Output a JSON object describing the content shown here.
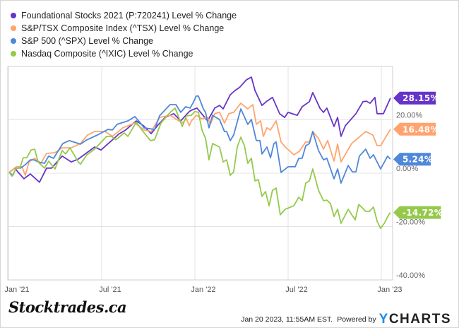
{
  "chart_data": {
    "type": "line",
    "x_unit": "months since Jan 2021",
    "ylim": [
      -40,
      40
    ],
    "yticks": [
      {
        "value": 20,
        "label": "20.00%"
      },
      {
        "value": 0,
        "label": "0.00%"
      },
      {
        "value": -20,
        "label": "-20.00%"
      },
      {
        "value": -40,
        "label": "-40.00%"
      }
    ],
    "xticks": [
      {
        "value": 0,
        "label": "Jan '21"
      },
      {
        "value": 6,
        "label": "Jul '21"
      },
      {
        "value": 12,
        "label": "Jan '22"
      },
      {
        "value": 18,
        "label": "Jul '22"
      },
      {
        "value": 24,
        "label": "Jan '23"
      }
    ],
    "grid": true,
    "legend_position": "top-left",
    "series": [
      {
        "name": "Foundational Stocks 2021 (P:720241) Level % Change",
        "color": "#6634c8",
        "end_label": "28.15%",
        "points": [
          [
            -0.09,
            0.3
          ],
          [
            0.27,
            1.9
          ],
          [
            0.5,
            0.3
          ],
          [
            0.86,
            -2.1
          ],
          [
            1.27,
            -0.3
          ],
          [
            1.86,
            -3.4
          ],
          [
            2.32,
            1.9
          ],
          [
            2.64,
            1.9
          ],
          [
            3.32,
            6.4
          ],
          [
            3.91,
            4.2
          ],
          [
            4.36,
            5.3
          ],
          [
            5.41,
            9.8
          ],
          [
            5.82,
            8.7
          ],
          [
            6.5,
            12.2
          ],
          [
            6.95,
            14.6
          ],
          [
            7.41,
            16.2
          ],
          [
            8.09,
            19.6
          ],
          [
            8.55,
            17.8
          ],
          [
            9.05,
            14.8
          ],
          [
            9.45,
            17.8
          ],
          [
            9.95,
            20.9
          ],
          [
            10.5,
            22.3
          ],
          [
            10.95,
            19.6
          ],
          [
            11.5,
            23.1
          ],
          [
            11.64,
            23.6
          ],
          [
            12.0,
            24.4
          ],
          [
            12.68,
            19.6
          ],
          [
            13.14,
            24.4
          ],
          [
            13.45,
            25.4
          ],
          [
            13.68,
            24.1
          ],
          [
            14.14,
            29.4
          ],
          [
            14.45,
            31.0
          ],
          [
            14.73,
            32.1
          ],
          [
            15.18,
            35.0
          ],
          [
            15.5,
            36.0
          ],
          [
            15.73,
            31.0
          ],
          [
            16.18,
            25.4
          ],
          [
            16.5,
            27.0
          ],
          [
            16.86,
            28.4
          ],
          [
            17.32,
            22.3
          ],
          [
            17.64,
            20.9
          ],
          [
            17.86,
            22.8
          ],
          [
            18.45,
            21.7
          ],
          [
            18.77,
            24.9
          ],
          [
            19.23,
            26.8
          ],
          [
            19.45,
            30.2
          ],
          [
            19.91,
            24.4
          ],
          [
            20.14,
            22.8
          ],
          [
            20.36,
            24.4
          ],
          [
            20.82,
            17.5
          ],
          [
            21.05,
            20.9
          ],
          [
            21.27,
            13.8
          ],
          [
            21.55,
            17.8
          ],
          [
            22.23,
            22.3
          ],
          [
            22.68,
            26.8
          ],
          [
            22.91,
            27.0
          ],
          [
            23.14,
            26.2
          ],
          [
            23.45,
            28.4
          ],
          [
            23.59,
            22.3
          ],
          [
            24.0,
            22.3
          ],
          [
            24.45,
            28.15
          ]
        ]
      },
      {
        "name": "S&P/TSX Composite Index (^TSX) Level % Change",
        "color": "#ffa46e",
        "end_label": "16.48%",
        "points": [
          [
            -0.09,
            0.3
          ],
          [
            0.36,
            2.4
          ],
          [
            0.73,
            2.4
          ],
          [
            0.95,
            -0.8
          ],
          [
            1.18,
            4.2
          ],
          [
            1.55,
            5.6
          ],
          [
            1.95,
            3.7
          ],
          [
            2.32,
            7.4
          ],
          [
            2.86,
            7.7
          ],
          [
            3.32,
            9.5
          ],
          [
            3.91,
            9.5
          ],
          [
            4.5,
            11.1
          ],
          [
            4.95,
            14.3
          ],
          [
            5.41,
            15.6
          ],
          [
            6.09,
            15.6
          ],
          [
            6.55,
            13.8
          ],
          [
            7.23,
            17.0
          ],
          [
            8.0,
            18.8
          ],
          [
            8.59,
            16.2
          ],
          [
            9.05,
            15.6
          ],
          [
            9.59,
            20.9
          ],
          [
            10.27,
            21.7
          ],
          [
            11.05,
            18.8
          ],
          [
            11.32,
            20.4
          ],
          [
            11.5,
            17.8
          ],
          [
            11.64,
            19.6
          ],
          [
            11.95,
            21.7
          ],
          [
            12.32,
            20.4
          ],
          [
            12.68,
            20.9
          ],
          [
            12.86,
            18.3
          ],
          [
            13.14,
            22.3
          ],
          [
            13.45,
            22.8
          ],
          [
            13.77,
            18.8
          ],
          [
            14.05,
            22.3
          ],
          [
            14.36,
            22.8
          ],
          [
            14.82,
            26.2
          ],
          [
            15.27,
            24.1
          ],
          [
            15.59,
            25.7
          ],
          [
            15.82,
            18.3
          ],
          [
            16.09,
            19.6
          ],
          [
            16.27,
            13.8
          ],
          [
            16.5,
            17.0
          ],
          [
            16.73,
            16.2
          ],
          [
            17.09,
            19.6
          ],
          [
            17.41,
            11.7
          ],
          [
            17.68,
            9.8
          ],
          [
            18.23,
            6.9
          ],
          [
            18.59,
            8.2
          ],
          [
            19.0,
            11.7
          ],
          [
            19.23,
            11.7
          ],
          [
            19.45,
            15.6
          ],
          [
            19.82,
            13.0
          ],
          [
            20.14,
            9.0
          ],
          [
            20.41,
            12.2
          ],
          [
            20.82,
            4.5
          ],
          [
            21.05,
            10.9
          ],
          [
            21.27,
            4.2
          ],
          [
            21.95,
            11.1
          ],
          [
            22.86,
            15.6
          ],
          [
            23.32,
            14.3
          ],
          [
            23.59,
            10.3
          ],
          [
            23.82,
            10.3
          ],
          [
            24.45,
            16.48
          ]
        ]
      },
      {
        "name": "S&P 500 (^SPX) Level % Change",
        "color": "#4f87da",
        "end_label": "5.24%",
        "points": [
          [
            -0.09,
            0.3
          ],
          [
            0.14,
            -0.8
          ],
          [
            0.36,
            1.9
          ],
          [
            0.64,
            1.9
          ],
          [
            0.95,
            3.2
          ],
          [
            1.27,
            5.0
          ],
          [
            1.5,
            5.0
          ],
          [
            1.77,
            4.2
          ],
          [
            2.18,
            3.7
          ],
          [
            2.45,
            6.4
          ],
          [
            2.77,
            5.6
          ],
          [
            3.36,
            11.1
          ],
          [
            3.77,
            12.2
          ],
          [
            4.5,
            10.9
          ],
          [
            4.91,
            12.5
          ],
          [
            5.59,
            14.3
          ],
          [
            6.27,
            16.4
          ],
          [
            6.55,
            16.2
          ],
          [
            6.86,
            18.3
          ],
          [
            7.55,
            19.6
          ],
          [
            8.0,
            21.2
          ],
          [
            8.36,
            18.8
          ],
          [
            8.59,
            17.0
          ],
          [
            9.27,
            16.4
          ],
          [
            9.59,
            21.5
          ],
          [
            10.27,
            25.7
          ],
          [
            10.64,
            25.7
          ],
          [
            10.95,
            22.8
          ],
          [
            11.27,
            24.9
          ],
          [
            11.55,
            24.4
          ],
          [
            11.73,
            26.2
          ],
          [
            11.95,
            28.9
          ],
          [
            12.09,
            28.9
          ],
          [
            12.41,
            24.1
          ],
          [
            12.55,
            22.8
          ],
          [
            12.77,
            17.0
          ],
          [
            13.0,
            21.7
          ],
          [
            13.45,
            20.1
          ],
          [
            13.77,
            15.6
          ],
          [
            13.91,
            15.6
          ],
          [
            14.14,
            12.2
          ],
          [
            14.36,
            14.3
          ],
          [
            14.82,
            24.1
          ],
          [
            15.27,
            18.3
          ],
          [
            15.5,
            20.1
          ],
          [
            15.82,
            12.2
          ],
          [
            16.05,
            12.2
          ],
          [
            16.18,
            7.2
          ],
          [
            16.5,
            9.8
          ],
          [
            16.73,
            5.8
          ],
          [
            16.95,
            11.1
          ],
          [
            17.09,
            11.7
          ],
          [
            17.41,
            0.3
          ],
          [
            17.86,
            2.4
          ],
          [
            18.32,
            2.4
          ],
          [
            18.55,
            5.6
          ],
          [
            18.77,
            5.6
          ],
          [
            19.0,
            10.3
          ],
          [
            19.23,
            11.1
          ],
          [
            19.45,
            15.6
          ],
          [
            19.82,
            8.5
          ],
          [
            20.14,
            5.0
          ],
          [
            20.36,
            5.6
          ],
          [
            20.82,
            -2.1
          ],
          [
            21.05,
            1.6
          ],
          [
            21.27,
            -3.7
          ],
          [
            21.73,
            2.9
          ],
          [
            22.0,
            0.5
          ],
          [
            22.23,
            0.5
          ],
          [
            22.45,
            6.4
          ],
          [
            22.86,
            9.0
          ],
          [
            23.14,
            5.6
          ],
          [
            23.36,
            6.9
          ],
          [
            23.82,
            1.6
          ],
          [
            24.27,
            6.4
          ],
          [
            24.45,
            5.24
          ]
        ]
      },
      {
        "name": "Nasdaq Composite (^IXIC) Level % Change",
        "color": "#95c94c",
        "end_label": "-14.72%",
        "points": [
          [
            -0.09,
            0.3
          ],
          [
            0.09,
            -1.1
          ],
          [
            0.36,
            1.9
          ],
          [
            0.59,
            1.9
          ],
          [
            0.82,
            5.8
          ],
          [
            1.05,
            5.8
          ],
          [
            1.32,
            8.7
          ],
          [
            1.55,
            9.0
          ],
          [
            1.77,
            4.2
          ],
          [
            2.18,
            1.9
          ],
          [
            2.45,
            4.5
          ],
          [
            2.86,
            1.6
          ],
          [
            3.32,
            8.5
          ],
          [
            3.55,
            7.2
          ],
          [
            3.82,
            9.5
          ],
          [
            4.36,
            4.2
          ],
          [
            4.5,
            3.4
          ],
          [
            4.91,
            6.9
          ],
          [
            5.41,
            9.0
          ],
          [
            6.18,
            13.8
          ],
          [
            6.5,
            13.8
          ],
          [
            6.77,
            12.5
          ],
          [
            7.32,
            15.1
          ],
          [
            7.55,
            13.8
          ],
          [
            8.09,
            19.1
          ],
          [
            8.45,
            16.2
          ],
          [
            9.0,
            12.2
          ],
          [
            9.27,
            12.5
          ],
          [
            9.68,
            18.8
          ],
          [
            10.27,
            22.8
          ],
          [
            10.59,
            24.4
          ],
          [
            11.05,
            17.5
          ],
          [
            11.32,
            21.5
          ],
          [
            11.64,
            21.7
          ],
          [
            11.86,
            23.1
          ],
          [
            12.09,
            22.8
          ],
          [
            12.32,
            16.2
          ],
          [
            12.55,
            13.0
          ],
          [
            12.77,
            5.0
          ],
          [
            13.0,
            11.1
          ],
          [
            13.45,
            9.8
          ],
          [
            13.68,
            4.2
          ],
          [
            13.91,
            5.0
          ],
          [
            14.14,
            -0.8
          ],
          [
            14.36,
            0.5
          ],
          [
            14.59,
            9.8
          ],
          [
            14.82,
            13.5
          ],
          [
            15.05,
            10.3
          ],
          [
            15.27,
            3.7
          ],
          [
            15.5,
            5.6
          ],
          [
            15.73,
            -2.9
          ],
          [
            15.95,
            -2.4
          ],
          [
            16.18,
            -8.7
          ],
          [
            16.41,
            -6.9
          ],
          [
            16.64,
            -12.2
          ],
          [
            16.86,
            -6.4
          ],
          [
            17.09,
            -5.6
          ],
          [
            17.36,
            -15.6
          ],
          [
            17.68,
            -13.5
          ],
          [
            18.23,
            -12.2
          ],
          [
            18.55,
            -9.0
          ],
          [
            18.77,
            -10.3
          ],
          [
            19.0,
            -3.7
          ],
          [
            19.23,
            -2.9
          ],
          [
            19.45,
            1.6
          ],
          [
            19.82,
            -6.4
          ],
          [
            20.14,
            -10.3
          ],
          [
            20.36,
            -10.1
          ],
          [
            20.59,
            -11.4
          ],
          [
            20.82,
            -16.2
          ],
          [
            21.05,
            -13.5
          ],
          [
            21.27,
            -18.8
          ],
          [
            21.73,
            -13.5
          ],
          [
            22.18,
            -17.5
          ],
          [
            22.41,
            -11.7
          ],
          [
            22.86,
            -14.3
          ],
          [
            23.09,
            -14.3
          ],
          [
            23.36,
            -12.7
          ],
          [
            23.59,
            -18.0
          ],
          [
            23.82,
            -20.7
          ],
          [
            24.05,
            -18.8
          ],
          [
            24.36,
            -15.4
          ],
          [
            24.45,
            -14.72
          ]
        ]
      }
    ]
  },
  "footer": {
    "brand": "Stocktrades.ca",
    "timestamp": "Jan 20 2023, 11:55AM EST.",
    "powered_by": "Powered by",
    "ycharts_y": "Y",
    "ycharts_rest": "CHARTS"
  }
}
